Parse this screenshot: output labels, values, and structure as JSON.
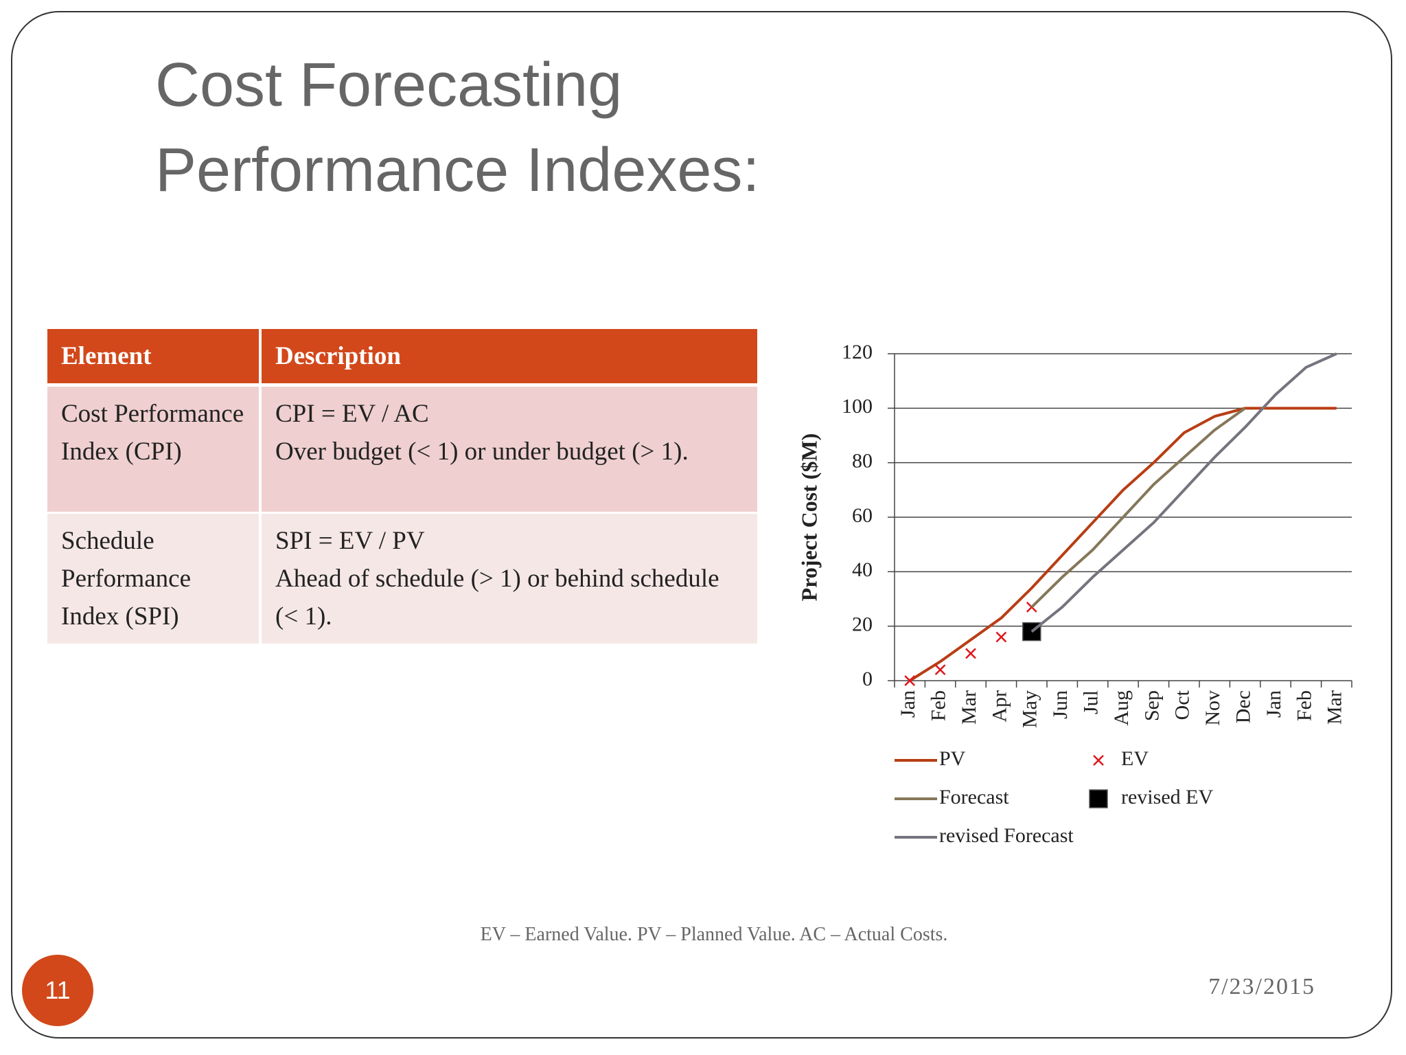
{
  "header": {
    "title_lines": [
      "Cost Forecasting",
      "Performance Indexes:"
    ]
  },
  "table": {
    "columns": [
      "Element",
      "Description"
    ],
    "rows": [
      {
        "element": "Cost Performance Index (CPI)",
        "formula": "CPI = EV / AC",
        "description": "Over budget (< 1) or under budget (> 1)."
      },
      {
        "element": "Schedule Performance Index (SPI)",
        "formula": "SPI = EV / PV",
        "description": "Ahead of schedule (> 1) or behind schedule (< 1)."
      }
    ]
  },
  "chart_data": {
    "type": "line",
    "y_label": "Project Cost ($M)",
    "categories": [
      "Jan",
      "Feb",
      "Mar",
      "Apr",
      "May",
      "Jun",
      "Jul",
      "Aug",
      "Sep",
      "Oct",
      "Nov",
      "Dec",
      "Jan",
      "Feb",
      "Mar"
    ],
    "ylim": [
      0,
      120
    ],
    "yticks": [
      0,
      20,
      40,
      60,
      80,
      100,
      120
    ],
    "grid": true,
    "series": [
      {
        "name": "PV",
        "type": "line",
        "color": "#b83e14",
        "values": [
          0,
          7,
          15,
          23,
          34,
          46,
          58,
          70,
          80,
          91,
          97,
          100,
          100,
          100,
          100
        ]
      },
      {
        "name": "EV",
        "type": "scatter",
        "marker": "x",
        "color": "#e0161b",
        "values": [
          0,
          4,
          10,
          16,
          27,
          null,
          null,
          null,
          null,
          null,
          null,
          null,
          null,
          null,
          null
        ]
      },
      {
        "name": "Forecast",
        "type": "line",
        "color": "#85775a",
        "values": [
          null,
          null,
          null,
          null,
          27,
          38,
          48,
          60,
          72,
          82,
          92,
          100,
          null,
          null,
          null
        ]
      },
      {
        "name": "revised EV",
        "type": "scatter",
        "marker": "square",
        "color": "#000000",
        "values": [
          null,
          null,
          null,
          null,
          18,
          null,
          null,
          null,
          null,
          null,
          null,
          null,
          null,
          null,
          null
        ]
      },
      {
        "name": "revised Forecast",
        "type": "line",
        "color": "#77737e",
        "values": [
          null,
          null,
          null,
          null,
          18,
          27,
          38,
          48,
          58,
          70,
          82,
          93,
          105,
          115,
          120
        ]
      }
    ]
  },
  "footnote": "EV – Earned Value.  PV – Planned Value. AC – Actual Costs.",
  "slide_number": "11",
  "date": "7/23/2015"
}
